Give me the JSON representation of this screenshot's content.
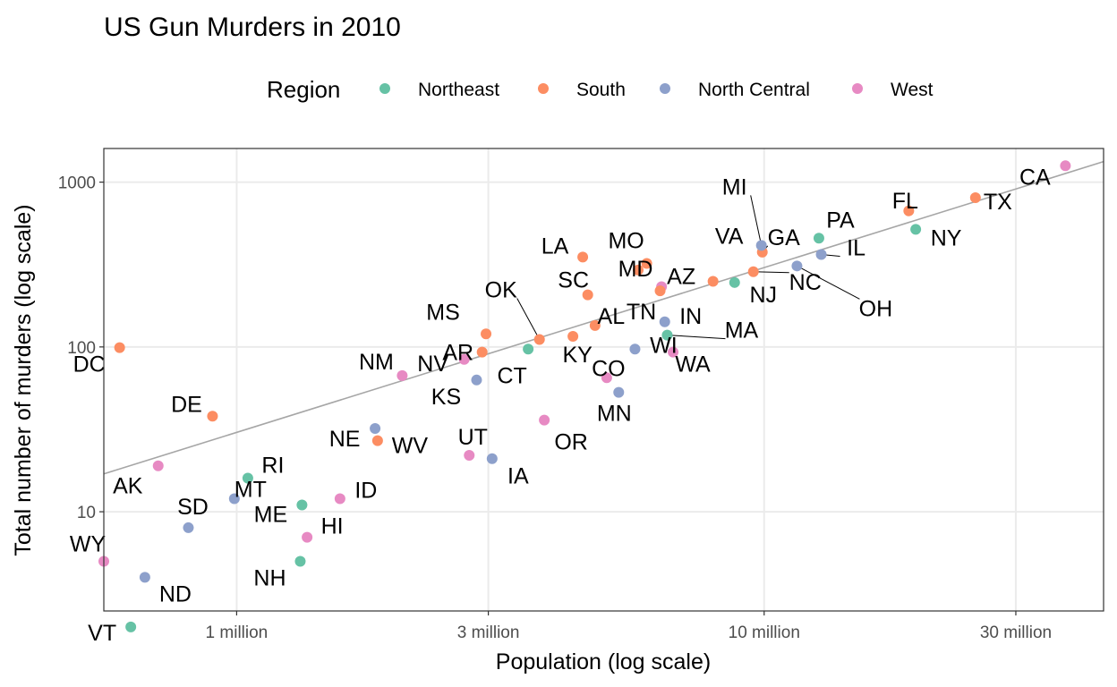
{
  "chart_data": {
    "type": "scatter",
    "title": "US Gun Murders in 2010",
    "xlabel": "Population (log scale)",
    "ylabel": "Total number of murders (log scale)",
    "x_scale": "log",
    "y_scale": "log",
    "xlim": [
      560000,
      44000000
    ],
    "ylim": [
      2.5,
      1600
    ],
    "x_ticks": [
      {
        "value": 1000000,
        "label": "1 million"
      },
      {
        "value": 3000000,
        "label": "3 million"
      },
      {
        "value": 10000000,
        "label": "10 million"
      },
      {
        "value": 30000000,
        "label": "30 million"
      }
    ],
    "y_ticks": [
      {
        "value": 10,
        "label": "10"
      },
      {
        "value": 100,
        "label": "100"
      },
      {
        "value": 1000,
        "label": "1000"
      }
    ],
    "grid": true,
    "legend": {
      "title": "Region",
      "position": "top",
      "entries": [
        {
          "name": "Northeast",
          "color": "#66c2a5"
        },
        {
          "name": "South",
          "color": "#fc8d62"
        },
        {
          "name": "North Central",
          "color": "#8da0cb"
        },
        {
          "name": "West",
          "color": "#e78ac3"
        }
      ]
    },
    "reference_line": {
      "description": "murders per population rate line",
      "rate_per_million": 30.3
    },
    "points": [
      {
        "abb": "AL",
        "region": "South",
        "population": 4780000,
        "murders": 135
      },
      {
        "abb": "AK",
        "region": "West",
        "population": 710000,
        "murders": 19
      },
      {
        "abb": "AZ",
        "region": "West",
        "population": 6390000,
        "murders": 232
      },
      {
        "abb": "AR",
        "region": "South",
        "population": 2920000,
        "murders": 93
      },
      {
        "abb": "CA",
        "region": "West",
        "population": 37250000,
        "murders": 1257
      },
      {
        "abb": "CO",
        "region": "West",
        "population": 5030000,
        "murders": 65
      },
      {
        "abb": "CT",
        "region": "Northeast",
        "population": 3570000,
        "murders": 97
      },
      {
        "abb": "DE",
        "region": "South",
        "population": 900000,
        "murders": 38
      },
      {
        "abb": "DC",
        "region": "South",
        "population": 600000,
        "murders": 99
      },
      {
        "abb": "FL",
        "region": "South",
        "population": 18800000,
        "murders": 669
      },
      {
        "abb": "GA",
        "region": "South",
        "population": 9920000,
        "murders": 376
      },
      {
        "abb": "HI",
        "region": "West",
        "population": 1360000,
        "murders": 7
      },
      {
        "abb": "ID",
        "region": "West",
        "population": 1570000,
        "murders": 12
      },
      {
        "abb": "IL",
        "region": "North Central",
        "population": 12830000,
        "murders": 364
      },
      {
        "abb": "IN",
        "region": "North Central",
        "population": 6480000,
        "murders": 142
      },
      {
        "abb": "IA",
        "region": "North Central",
        "population": 3050000,
        "murders": 21
      },
      {
        "abb": "KS",
        "region": "North Central",
        "population": 2850000,
        "murders": 63
      },
      {
        "abb": "KY",
        "region": "South",
        "population": 4340000,
        "murders": 116
      },
      {
        "abb": "LA",
        "region": "South",
        "population": 4530000,
        "murders": 351
      },
      {
        "abb": "ME",
        "region": "Northeast",
        "population": 1330000,
        "murders": 11
      },
      {
        "abb": "MD",
        "region": "South",
        "population": 5770000,
        "murders": 293
      },
      {
        "abb": "MA",
        "region": "Northeast",
        "population": 6550000,
        "murders": 118
      },
      {
        "abb": "MI",
        "region": "North Central",
        "population": 9880000,
        "murders": 413
      },
      {
        "abb": "MN",
        "region": "North Central",
        "population": 5300000,
        "murders": 53
      },
      {
        "abb": "MS",
        "region": "South",
        "population": 2970000,
        "murders": 120
      },
      {
        "abb": "MO",
        "region": "South",
        "population": 5990000,
        "murders": 321
      },
      {
        "abb": "MT",
        "region": "North Central",
        "population": 990000,
        "murders": 12
      },
      {
        "abb": "NE",
        "region": "North Central",
        "population": 1830000,
        "murders": 32
      },
      {
        "abb": "NV",
        "region": "West",
        "population": 2700000,
        "murders": 84
      },
      {
        "abb": "NH",
        "region": "Northeast",
        "population": 1320000,
        "murders": 5
      },
      {
        "abb": "NJ",
        "region": "Northeast",
        "population": 8790000,
        "murders": 246
      },
      {
        "abb": "NM",
        "region": "West",
        "population": 2060000,
        "murders": 67
      },
      {
        "abb": "NY",
        "region": "Northeast",
        "population": 19380000,
        "murders": 517
      },
      {
        "abb": "NC",
        "region": "South",
        "population": 9540000,
        "murders": 286
      },
      {
        "abb": "ND",
        "region": "North Central",
        "population": 670000,
        "murders": 4
      },
      {
        "abb": "OH",
        "region": "North Central",
        "population": 11540000,
        "murders": 310
      },
      {
        "abb": "OK",
        "region": "South",
        "population": 3750000,
        "murders": 111
      },
      {
        "abb": "OR",
        "region": "West",
        "population": 3830000,
        "murders": 36
      },
      {
        "abb": "PA",
        "region": "Northeast",
        "population": 12700000,
        "murders": 457
      },
      {
        "abb": "RI",
        "region": "Northeast",
        "population": 1050000,
        "murders": 16
      },
      {
        "abb": "SC",
        "region": "South",
        "population": 4630000,
        "murders": 207
      },
      {
        "abb": "SD",
        "region": "North Central",
        "population": 810000,
        "murders": 8
      },
      {
        "abb": "TN",
        "region": "South",
        "population": 6350000,
        "murders": 219
      },
      {
        "abb": "TX",
        "region": "South",
        "population": 25150000,
        "murders": 805
      },
      {
        "abb": "UT",
        "region": "West",
        "population": 2760000,
        "murders": 22
      },
      {
        "abb": "VT",
        "region": "Northeast",
        "population": 630000,
        "murders": 2
      },
      {
        "abb": "VA",
        "region": "South",
        "population": 8000000,
        "murders": 250
      },
      {
        "abb": "WA",
        "region": "West",
        "population": 6720000,
        "murders": 93
      },
      {
        "abb": "WV",
        "region": "South",
        "population": 1850000,
        "murders": 27
      },
      {
        "abb": "WI",
        "region": "North Central",
        "population": 5690000,
        "murders": 97
      },
      {
        "abb": "WY",
        "region": "West",
        "population": 560000,
        "murders": 5
      }
    ]
  }
}
